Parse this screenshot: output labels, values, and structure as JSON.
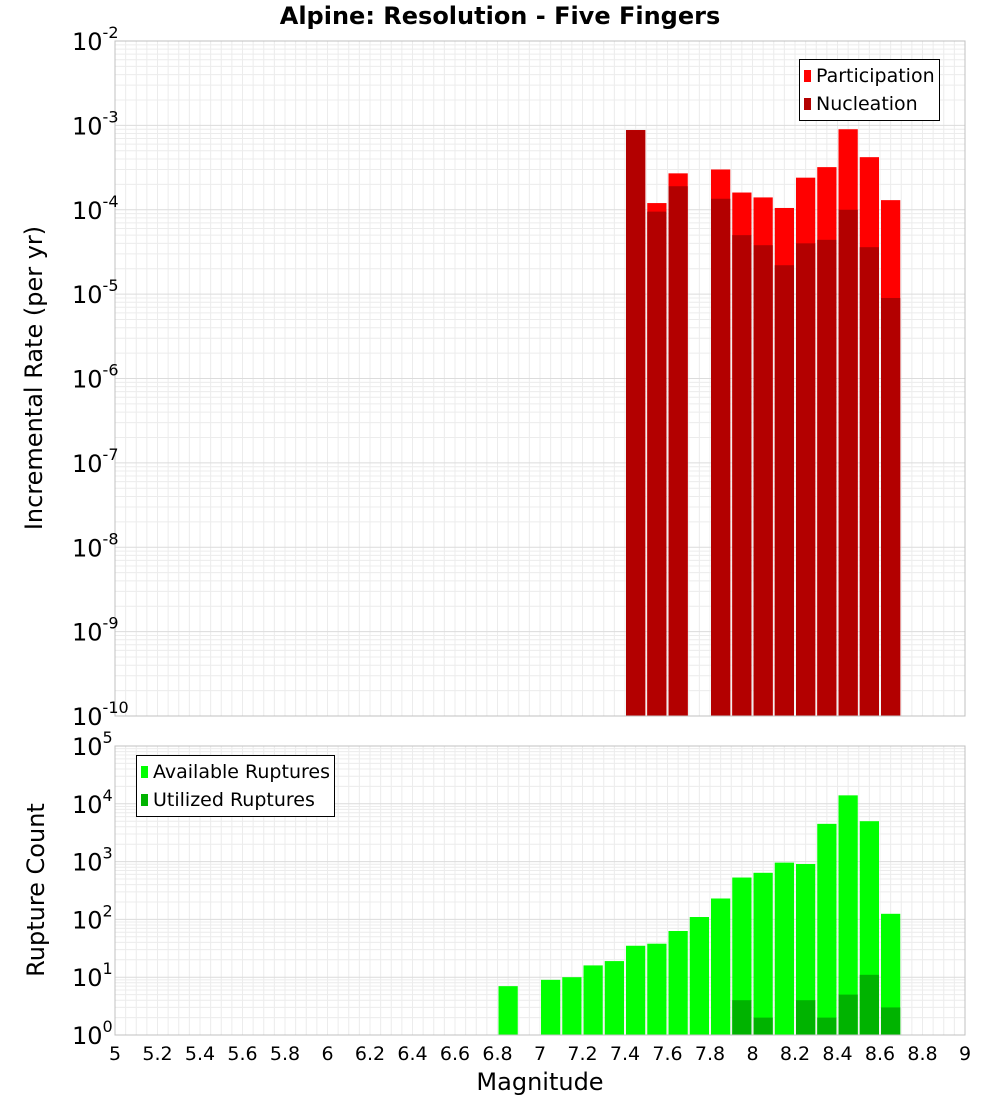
{
  "title": "Alpine: Resolution - Five Fingers",
  "xlabel": "Magnitude",
  "colors": {
    "participation": "#ff0000",
    "nucleation": "#b30000",
    "available": "#00ff00",
    "utilized": "#00b300"
  },
  "chart_data": [
    {
      "type": "bar",
      "ylabel": "Incremental Rate (per yr)",
      "yscale": "log",
      "ylim": [
        1e-10,
        0.01
      ],
      "xlim": [
        5,
        9
      ],
      "grid": true,
      "legend_position": "top-right",
      "bin_width": 0.1,
      "series": [
        {
          "name": "Participation",
          "x": [
            7.45,
            7.55,
            7.65,
            7.85,
            7.95,
            8.05,
            8.15,
            8.25,
            8.35,
            8.45,
            8.55,
            8.65
          ],
          "values": [
            0.00088,
            0.00012,
            0.00027,
            0.0003,
            0.00016,
            0.00014,
            0.000105,
            0.00024,
            0.00032,
            0.0009,
            0.00042,
            0.00013
          ]
        },
        {
          "name": "Nucleation",
          "x": [
            7.45,
            7.55,
            7.65,
            7.85,
            7.95,
            8.05,
            8.15,
            8.25,
            8.35,
            8.45,
            8.55,
            8.65
          ],
          "values": [
            0.00088,
            9.5e-05,
            0.00019,
            0.000135,
            5e-05,
            3.8e-05,
            2.2e-05,
            4e-05,
            4.4e-05,
            0.0001,
            3.6e-05,
            9e-06
          ]
        }
      ]
    },
    {
      "type": "bar",
      "ylabel": "Rupture Count",
      "yscale": "log",
      "ylim": [
        1,
        100000
      ],
      "xlim": [
        5,
        9
      ],
      "grid": true,
      "legend_position": "top-left",
      "bin_width": 0.1,
      "series": [
        {
          "name": "Available Ruptures",
          "x": [
            6.85,
            7.05,
            7.15,
            7.25,
            7.35,
            7.45,
            7.55,
            7.65,
            7.75,
            7.85,
            7.95,
            8.05,
            8.15,
            8.25,
            8.35,
            8.45,
            8.55,
            8.65
          ],
          "values": [
            7,
            9,
            10,
            16,
            19,
            35,
            38,
            63,
            110,
            230,
            530,
            640,
            960,
            910,
            4500,
            14000,
            5000,
            125
          ]
        },
        {
          "name": "Utilized Ruptures",
          "x": [
            7.45,
            7.55,
            7.65,
            7.85,
            7.95,
            8.05,
            8.15,
            8.25,
            8.35,
            8.45,
            8.55,
            8.65
          ],
          "values": [
            1,
            1,
            1,
            1,
            4,
            2,
            1,
            4,
            2,
            5,
            11,
            3
          ]
        }
      ]
    }
  ],
  "axis": {
    "xticks": [
      "5",
      "5.2",
      "5.4",
      "5.6",
      "5.8",
      "6",
      "6.2",
      "6.4",
      "6.6",
      "6.8",
      "7",
      "7.2",
      "7.4",
      "7.6",
      "7.8",
      "8",
      "8.2",
      "8.4",
      "8.6",
      "8.8",
      "9"
    ],
    "top_yticks": [
      {
        "base": "10",
        "exp": "-10",
        "value": 1e-10
      },
      {
        "base": "10",
        "exp": "-9",
        "value": 1e-09
      },
      {
        "base": "10",
        "exp": "-8",
        "value": 1e-08
      },
      {
        "base": "10",
        "exp": "-7",
        "value": 1e-07
      },
      {
        "base": "10",
        "exp": "-6",
        "value": 1e-06
      },
      {
        "base": "10",
        "exp": "-5",
        "value": 1e-05
      },
      {
        "base": "10",
        "exp": "-4",
        "value": 0.0001
      },
      {
        "base": "10",
        "exp": "-3",
        "value": 0.001
      },
      {
        "base": "10",
        "exp": "-2",
        "value": 0.01
      }
    ],
    "bottom_yticks": [
      {
        "base": "10",
        "exp": "0",
        "value": 1
      },
      {
        "base": "10",
        "exp": "1",
        "value": 10
      },
      {
        "base": "10",
        "exp": "2",
        "value": 100
      },
      {
        "base": "10",
        "exp": "3",
        "value": 1000
      },
      {
        "base": "10",
        "exp": "4",
        "value": 10000
      },
      {
        "base": "10",
        "exp": "5",
        "value": 100000
      }
    ]
  },
  "legend_top": [
    "Participation",
    "Nucleation"
  ],
  "legend_bottom": [
    "Available Ruptures",
    "Utilized Ruptures"
  ]
}
